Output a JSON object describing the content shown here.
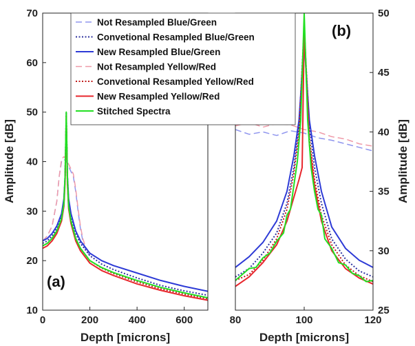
{
  "legend": [
    {
      "name": "Not Resampled Blue/Green",
      "color": "#8f95ee",
      "dash": "9,5",
      "width": 1.5
    },
    {
      "name": "Convetional Resampled Blue/Green",
      "color": "#2b2f9e",
      "dash": "2,2.5",
      "width": 2
    },
    {
      "name": "New Resampled Blue/Green",
      "color": "#2d3ad6",
      "dash": "",
      "width": 2
    },
    {
      "name": "Not Resampled Yellow/Red",
      "color": "#ef9aa8",
      "dash": "9,5",
      "width": 1.5
    },
    {
      "name": "Convetional Resampled Yellow/Red",
      "color": "#c01818",
      "dash": "2,2.5",
      "width": 2
    },
    {
      "name": "New Resampled Yellow/Red",
      "color": "#e8262c",
      "dash": "",
      "width": 2
    },
    {
      "name": "Stitched Spectra",
      "color": "#22e022",
      "dash": "",
      "width": 2
    }
  ],
  "chart_data": [
    {
      "type": "line",
      "panel": "(a)",
      "xlabel": "Depth [microns]",
      "ylabel": "Amplitude [dB]",
      "xlim": [
        0,
        700
      ],
      "ylim": [
        10,
        70
      ],
      "xticks": [
        0,
        200,
        400,
        600
      ],
      "yticks": [
        10,
        20,
        30,
        40,
        50,
        60,
        70
      ],
      "yaxis_side": "left",
      "grid": false,
      "series": [
        {
          "name": "Not Resampled Blue/Green",
          "x": [
            0,
            20,
            40,
            60,
            70,
            80,
            90,
            100,
            110,
            120,
            130,
            140,
            150,
            160,
            170,
            180,
            200
          ],
          "y": [
            24.0,
            25.0,
            27.0,
            32.0,
            37.0,
            40.0,
            40.5,
            40.0,
            39.0,
            38.0,
            37.0,
            34.0,
            30.0,
            26.5,
            24.0,
            22.5,
            21.0
          ]
        },
        {
          "name": "Not Resampled Yellow/Red",
          "x": [
            0,
            20,
            40,
            60,
            70,
            80,
            90,
            100,
            110,
            120,
            130,
            140,
            150,
            160,
            170,
            180,
            200
          ],
          "y": [
            24.0,
            25.0,
            27.0,
            32.0,
            37.0,
            40.5,
            41.0,
            40.5,
            39.5,
            38.5,
            37.5,
            34.5,
            30.5,
            27.0,
            24.5,
            23.0,
            21.0
          ]
        },
        {
          "name": "Convetional Resampled Blue/Green",
          "x": [
            0,
            20,
            40,
            60,
            80,
            90,
            95,
            100,
            105,
            110,
            120,
            140,
            160,
            200,
            250,
            300,
            400,
            500,
            600,
            700
          ],
          "y": [
            23.5,
            24.0,
            25.0,
            26.5,
            29.0,
            32.0,
            37.0,
            50.0,
            37.0,
            32.0,
            29.0,
            25.5,
            23.5,
            21.0,
            19.3,
            18.2,
            16.5,
            15.0,
            13.9,
            13.0
          ]
        },
        {
          "name": "New Resampled Blue/Green",
          "x": [
            0,
            20,
            40,
            60,
            80,
            90,
            95,
            100,
            105,
            110,
            120,
            140,
            160,
            200,
            250,
            300,
            400,
            500,
            600,
            700
          ],
          "y": [
            24.0,
            24.5,
            25.5,
            27.0,
            29.5,
            32.5,
            37.0,
            48.0,
            37.0,
            32.5,
            29.5,
            26.0,
            24.0,
            21.5,
            20.0,
            19.0,
            17.5,
            16.0,
            14.8,
            13.8
          ]
        },
        {
          "name": "Convetional Resampled Yellow/Red",
          "x": [
            0,
            20,
            40,
            60,
            80,
            90,
            95,
            100,
            105,
            110,
            120,
            140,
            160,
            200,
            250,
            300,
            400,
            500,
            600,
            700
          ],
          "y": [
            23.0,
            23.5,
            24.5,
            26.0,
            28.5,
            31.5,
            36.5,
            49.5,
            36.0,
            31.0,
            28.0,
            24.5,
            22.5,
            20.0,
            18.5,
            17.4,
            15.7,
            14.3,
            13.2,
            12.3
          ]
        },
        {
          "name": "New Resampled Yellow/Red",
          "x": [
            0,
            20,
            40,
            60,
            80,
            90,
            95,
            100,
            105,
            110,
            120,
            140,
            160,
            200,
            250,
            300,
            400,
            500,
            600,
            700
          ],
          "y": [
            22.5,
            23.0,
            24.0,
            25.5,
            28.0,
            31.0,
            36.0,
            49.0,
            35.5,
            30.5,
            27.5,
            24.0,
            22.0,
            19.5,
            18.0,
            17.0,
            15.3,
            14.0,
            12.9,
            12.0
          ]
        },
        {
          "name": "Stitched Spectra",
          "x": [
            0,
            20,
            40,
            60,
            80,
            90,
            95,
            100,
            105,
            110,
            120,
            140,
            160,
            200,
            250,
            300,
            400,
            500,
            600,
            700
          ],
          "y": [
            23.0,
            23.5,
            24.5,
            26.0,
            28.5,
            31.5,
            37.0,
            50.0,
            36.5,
            31.0,
            28.0,
            24.5,
            22.5,
            20.0,
            18.6,
            17.6,
            16.0,
            14.6,
            13.5,
            12.5
          ]
        }
      ]
    },
    {
      "type": "line",
      "panel": "(b)",
      "xlabel": "Depth [microns]",
      "ylabel": "Amplitude [dB]",
      "xlim": [
        80,
        120
      ],
      "ylim": [
        25,
        50
      ],
      "xticks": [
        80,
        100,
        120
      ],
      "yticks": [
        25,
        30,
        35,
        40,
        45,
        50
      ],
      "yaxis_side": "right",
      "grid": false,
      "series": [
        {
          "name": "Not Resampled Blue/Green",
          "x": [
            80,
            84,
            88,
            92,
            96,
            100,
            104,
            108,
            112,
            116,
            120
          ],
          "y": [
            40.2,
            39.8,
            40.0,
            39.7,
            40.1,
            39.9,
            39.5,
            39.3,
            39.0,
            38.7,
            38.4
          ]
        },
        {
          "name": "Not Resampled Yellow/Red",
          "x": [
            80,
            84,
            88,
            92,
            96,
            100,
            104,
            108,
            112,
            116,
            120
          ],
          "y": [
            40.5,
            40.8,
            40.4,
            40.7,
            40.6,
            40.2,
            40.0,
            39.6,
            39.4,
            39.0,
            38.8
          ]
        },
        {
          "name": "Convetional Resampled Blue/Green",
          "x": [
            80,
            84,
            88,
            92,
            95,
            97,
            98.5,
            100,
            101.5,
            103,
            105,
            108,
            112,
            116,
            120
          ],
          "y": [
            27.8,
            28.5,
            29.8,
            31.5,
            34.0,
            37.0,
            40.5,
            48.5,
            40.5,
            37.0,
            34.0,
            31.0,
            29.3,
            28.3,
            27.8
          ]
        },
        {
          "name": "New Resampled Blue/Green",
          "x": [
            80,
            84,
            88,
            92,
            95,
            97,
            98.5,
            100,
            101.5,
            103,
            105,
            108,
            112,
            116,
            120
          ],
          "y": [
            28.6,
            29.5,
            30.7,
            32.5,
            35.0,
            38.0,
            41.0,
            47.5,
            41.0,
            38.0,
            35.0,
            32.0,
            30.2,
            29.2,
            28.6
          ]
        },
        {
          "name": "Convetional Resampled Yellow/Red",
          "x": [
            80,
            84,
            88,
            92,
            95,
            97,
            98.5,
            100,
            101.5,
            103,
            105,
            108,
            112,
            116,
            120
          ],
          "y": [
            27.5,
            28.0,
            29.2,
            31.0,
            33.5,
            36.5,
            40.0,
            49.0,
            39.5,
            36.0,
            33.0,
            30.5,
            28.8,
            27.9,
            27.4
          ]
        },
        {
          "name": "New Resampled Yellow/Red",
          "x": [
            80,
            84,
            88,
            92,
            95,
            97,
            98.5,
            99.4,
            100,
            101.5,
            103,
            105,
            108,
            112,
            116,
            120
          ],
          "y": [
            27.0,
            27.8,
            29.0,
            30.5,
            32.5,
            34.5,
            36.0,
            37.0,
            48.5,
            39.0,
            35.5,
            32.5,
            30.0,
            28.5,
            27.7,
            27.2
          ]
        },
        {
          "name": "Stitched Spectra",
          "x": [
            80,
            82,
            84,
            86,
            88,
            90,
            92,
            94,
            95,
            96,
            97,
            98,
            99,
            100,
            101,
            102,
            103,
            104,
            105,
            106,
            108,
            110,
            112,
            114,
            116,
            118,
            120
          ],
          "y": [
            27.5,
            28.0,
            28.5,
            28.6,
            29.4,
            29.8,
            30.8,
            31.5,
            33.0,
            33.5,
            35.5,
            37.5,
            41.0,
            50.0,
            41.0,
            37.0,
            35.0,
            33.5,
            33.0,
            31.0,
            30.2,
            29.0,
            28.8,
            28.1,
            27.9,
            27.4,
            27.5
          ]
        }
      ]
    }
  ]
}
